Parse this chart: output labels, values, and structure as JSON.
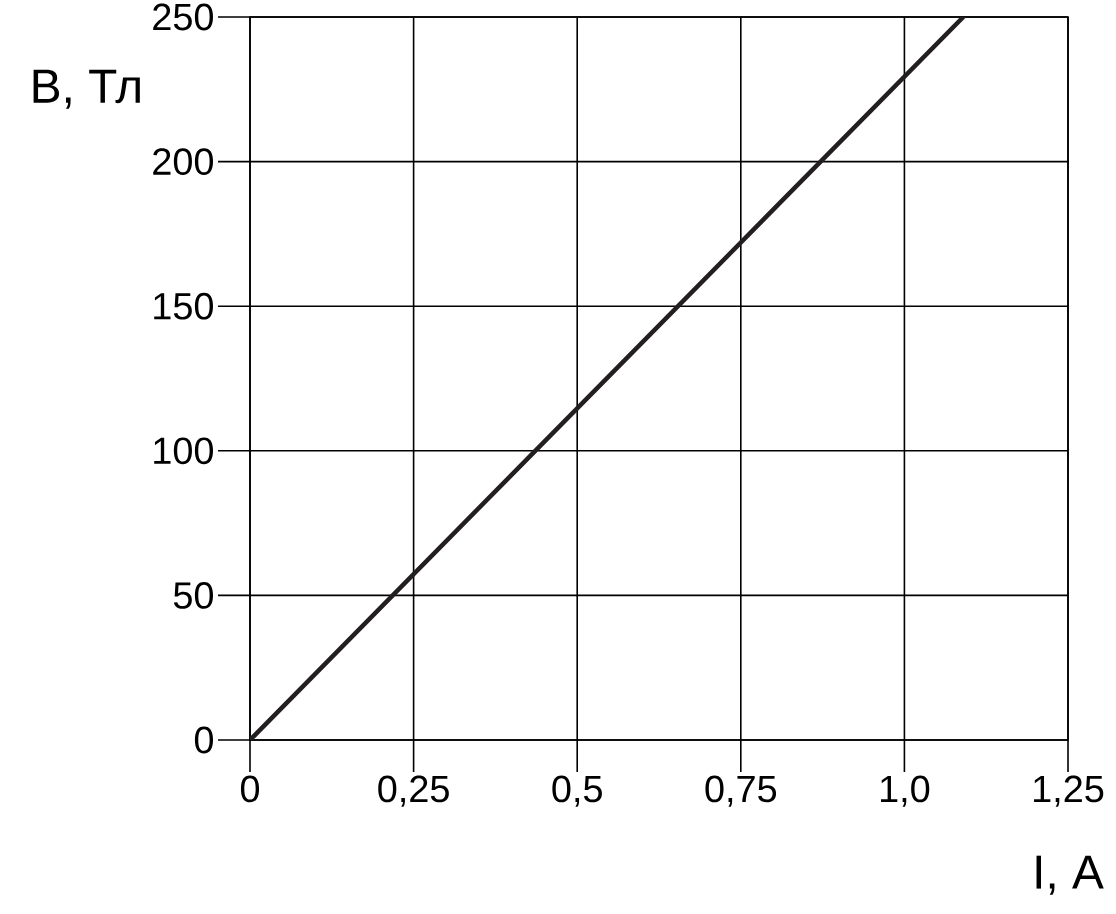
{
  "chart_data": {
    "type": "line",
    "xlabel": "I, A",
    "ylabel": "B, Тл",
    "x": [
      0,
      1.09
    ],
    "series": [
      {
        "color": "#231f20",
        "values": [
          0,
          250
        ]
      }
    ],
    "xlim": [
      0,
      1.25
    ],
    "ylim": [
      0,
      250
    ],
    "xticks": [
      0,
      {
        "value": 0.25,
        "label": "0,25"
      },
      {
        "value": 0.5,
        "label": "0,5"
      },
      {
        "value": 0.75,
        "label": "0,75"
      },
      {
        "value": 1.0,
        "label": "1,0"
      },
      {
        "value": 1.25,
        "label": "1,25"
      }
    ],
    "yticks": [
      0,
      50,
      100,
      150,
      200,
      250
    ],
    "grid": true
  }
}
